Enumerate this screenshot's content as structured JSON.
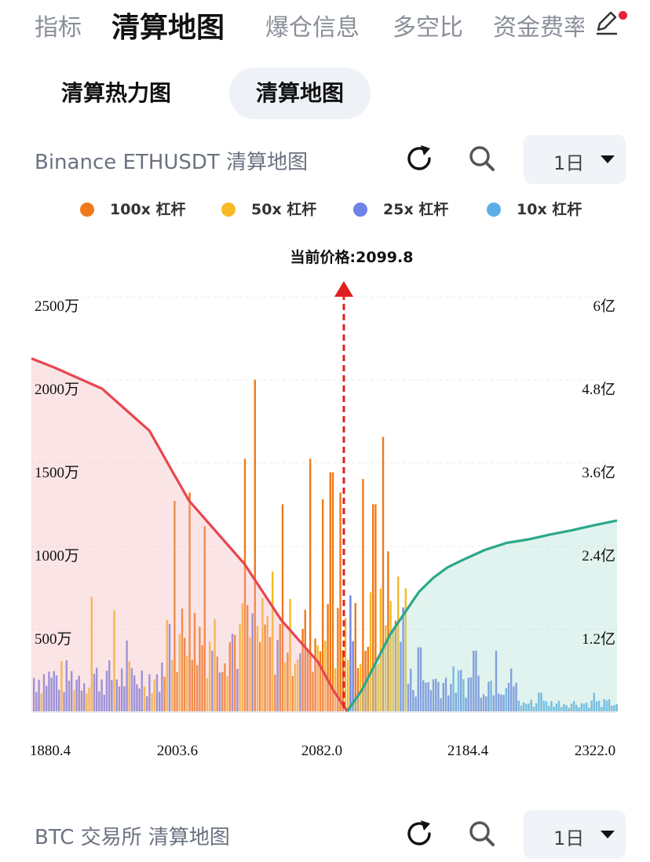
{
  "tabs": [
    {
      "label": "指标",
      "active": false
    },
    {
      "label": "清算地图",
      "active": true
    },
    {
      "label": "爆仓信息",
      "active": false
    },
    {
      "label": "多空比",
      "active": false
    },
    {
      "label": "资金费率",
      "active": false
    }
  ],
  "sub_tabs": [
    {
      "label": "清算热力图",
      "active": false
    },
    {
      "label": "清算地图",
      "active": true
    }
  ],
  "chart_section": {
    "title": "Binance ETHUSDT 清算地图",
    "period": "1日"
  },
  "legend": [
    {
      "label": "100x 杠杆",
      "color": "#f07a1a"
    },
    {
      "label": "50x 杠杆",
      "color": "#f7b924"
    },
    {
      "label": "25x 杠杆",
      "color": "#6f82e6"
    },
    {
      "label": "10x 杠杆",
      "color": "#5aaee8"
    }
  ],
  "chart_data": {
    "type": "bar",
    "title": "",
    "current_price_label": "当前价格:2099.8",
    "current_price": 2099.8,
    "x_range": [
      1880.4,
      2322.0
    ],
    "x_ticks": [
      "1880.4",
      "2003.6",
      "2082.0",
      "2184.4",
      "2322.0"
    ],
    "y_left_ticks": [
      "2500万",
      "2000万",
      "1500万",
      "1000万",
      "500万"
    ],
    "y_left_range": [
      0,
      25000000
    ],
    "y_right_ticks": [
      "6亿",
      "4.8亿",
      "3.6亿",
      "2.4亿",
      "1.2亿"
    ],
    "y_right_range": [
      0,
      600000000
    ],
    "grid": true,
    "legend_position": "top",
    "colors": {
      "long_cum": "#e8464f",
      "short_cum": "#2aa88a",
      "price_line": "#e02020"
    },
    "cumulative_long": {
      "x": [
        1880.4,
        1900,
        1920,
        1940,
        1960,
        1980,
        2000,
        2010,
        2020,
        2030,
        2040,
        2050,
        2060,
        2070,
        2080,
        2090,
        2099.8
      ],
      "y": [
        503000000,
        490000000,
        475000000,
        460000000,
        430000000,
        400000000,
        340000000,
        300000000,
        270000000,
        240000000,
        210000000,
        170000000,
        130000000,
        100000000,
        70000000,
        30000000,
        0
      ]
    },
    "cumulative_short": {
      "x": [
        2099.8,
        2110,
        2120,
        2130,
        2140,
        2150,
        2160,
        2170,
        2180,
        2200,
        2220,
        2240,
        2260,
        2280,
        2300,
        2322.0
      ],
      "y": [
        0,
        30000000,
        70000000,
        110000000,
        140000000,
        170000000,
        190000000,
        205000000,
        215000000,
        230000000,
        240000000,
        245000000,
        252000000,
        258000000,
        265000000,
        272000000
      ]
    },
    "series": [
      {
        "name": "100x 杠杆",
        "peaks": [
          {
            "x": 2000,
            "value": 12500000
          },
          {
            "x": 2010,
            "value": 13000000
          },
          {
            "x": 2018,
            "value": 11000000
          },
          {
            "x": 2040,
            "value": 15000000
          },
          {
            "x": 2045,
            "value": 19700000
          },
          {
            "x": 2060,
            "value": 12300000
          },
          {
            "x": 2075,
            "value": 15000000
          },
          {
            "x": 2082,
            "value": 12600000
          },
          {
            "x": 2088,
            "value": 14200000
          },
          {
            "x": 2095,
            "value": 13000000
          },
          {
            "x": 2110,
            "value": 13800000
          },
          {
            "x": 2118,
            "value": 12300000
          },
          {
            "x": 2124,
            "value": 16300000
          },
          {
            "x": 2128,
            "value": 9500000
          }
        ]
      },
      {
        "name": "50x 杠杆",
        "peaks": [
          {
            "x": 1930,
            "value": 6800000
          },
          {
            "x": 1950,
            "value": 6000000
          },
          {
            "x": 2055,
            "value": 8300000
          },
          {
            "x": 2135,
            "value": 8000000
          },
          {
            "x": 2140,
            "value": 7300000
          }
        ]
      },
      {
        "name": "25x 杠杆",
        "peaks": [
          {
            "x": 1960,
            "value": 4200000
          },
          {
            "x": 2150,
            "value": 3800000
          },
          {
            "x": 2190,
            "value": 3600000
          },
          {
            "x": 2210,
            "value": 3600000
          }
        ]
      },
      {
        "name": "10x 杠杆",
        "peaks": [
          {
            "x": 2250,
            "value": 1100000
          },
          {
            "x": 2300,
            "value": 1100000
          }
        ]
      }
    ]
  },
  "second_section": {
    "title": "BTC 交易所 清算地图",
    "period": "1日"
  },
  "icons": {
    "refresh": "refresh-icon",
    "search": "search-icon",
    "edit": "edit-icon",
    "dropdown": "chevron-down-icon"
  }
}
